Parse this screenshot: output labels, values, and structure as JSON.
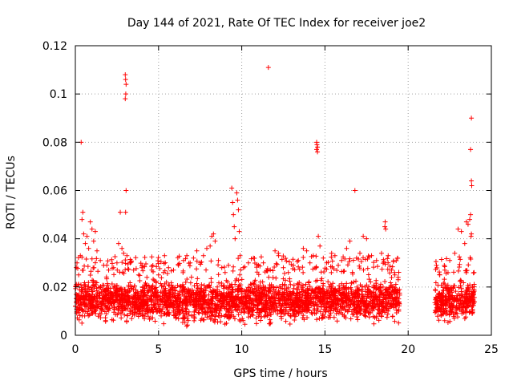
{
  "chart_data": {
    "type": "scatter",
    "title": "Day 144 of 2021, Rate Of TEC Index for receiver joe2",
    "xlabel": "GPS time / hours",
    "ylabel": "ROTI / TECUs",
    "xlim": [
      0,
      25
    ],
    "ylim": [
      0,
      0.12
    ],
    "xticks": [
      0,
      5,
      10,
      15,
      20,
      25
    ],
    "xtick_labels": [
      "0",
      "5",
      "10",
      "15",
      "20",
      "25"
    ],
    "yticks": [
      0,
      0.02,
      0.04,
      0.06,
      0.08,
      0.1,
      0.12
    ],
    "ytick_labels": [
      "0",
      "0.02",
      "0.04",
      "0.06",
      "0.08",
      "0.1",
      "0.12"
    ],
    "grid": true,
    "marker": "plus",
    "series": [
      {
        "name": "ROTI",
        "color": "#ff0000",
        "points": [
          [
            0.1,
            0.03
          ],
          [
            0.2,
            0.025
          ],
          [
            0.3,
            0.033
          ],
          [
            0.35,
            0.08
          ],
          [
            0.4,
            0.048
          ],
          [
            0.45,
            0.051
          ],
          [
            0.5,
            0.042
          ],
          [
            0.6,
            0.038
          ],
          [
            0.7,
            0.041
          ],
          [
            0.8,
            0.036
          ],
          [
            0.9,
            0.047
          ],
          [
            1.0,
            0.044
          ],
          [
            1.1,
            0.039
          ],
          [
            1.2,
            0.043
          ],
          [
            1.3,
            0.035
          ],
          [
            1.5,
            0.031
          ],
          [
            1.7,
            0.029
          ],
          [
            2.0,
            0.027
          ],
          [
            2.3,
            0.028
          ],
          [
            2.5,
            0.03
          ],
          [
            2.6,
            0.038
          ],
          [
            2.7,
            0.051
          ],
          [
            2.8,
            0.036
          ],
          [
            2.9,
            0.034
          ],
          [
            3.0,
            0.108
          ],
          [
            3.02,
            0.106
          ],
          [
            3.05,
            0.104
          ],
          [
            3.03,
            0.1
          ],
          [
            3.0,
            0.098
          ],
          [
            3.05,
            0.06
          ],
          [
            3.02,
            0.051
          ],
          [
            3.1,
            0.033
          ],
          [
            3.3,
            0.03
          ],
          [
            3.5,
            0.027
          ],
          [
            3.8,
            0.025
          ],
          [
            4.0,
            0.028
          ],
          [
            4.3,
            0.024
          ],
          [
            4.6,
            0.027
          ],
          [
            5.0,
            0.025
          ],
          [
            5.3,
            0.026
          ],
          [
            5.6,
            0.028
          ],
          [
            5.9,
            0.027
          ],
          [
            6.2,
            0.029
          ],
          [
            6.5,
            0.031
          ],
          [
            6.7,
            0.033
          ],
          [
            6.9,
            0.03
          ],
          [
            7.1,
            0.032
          ],
          [
            7.3,
            0.035
          ],
          [
            7.5,
            0.03
          ],
          [
            7.7,
            0.033
          ],
          [
            7.9,
            0.036
          ],
          [
            8.1,
            0.037
          ],
          [
            8.2,
            0.041
          ],
          [
            8.3,
            0.042
          ],
          [
            8.4,
            0.039
          ],
          [
            8.6,
            0.031
          ],
          [
            8.8,
            0.028
          ],
          [
            9.0,
            0.026
          ],
          [
            9.2,
            0.029
          ],
          [
            9.4,
            0.061
          ],
          [
            9.45,
            0.055
          ],
          [
            9.5,
            0.05
          ],
          [
            9.55,
            0.045
          ],
          [
            9.6,
            0.04
          ],
          [
            9.7,
            0.059
          ],
          [
            9.75,
            0.056
          ],
          [
            9.8,
            0.052
          ],
          [
            9.85,
            0.043
          ],
          [
            9.9,
            0.033
          ],
          [
            10.1,
            0.028
          ],
          [
            10.4,
            0.03
          ],
          [
            10.7,
            0.032
          ],
          [
            11.0,
            0.029
          ],
          [
            11.3,
            0.03
          ],
          [
            11.6,
            0.111
          ],
          [
            12.0,
            0.035
          ],
          [
            12.2,
            0.034
          ],
          [
            12.5,
            0.028
          ],
          [
            12.8,
            0.026
          ],
          [
            13.1,
            0.029
          ],
          [
            13.4,
            0.031
          ],
          [
            13.7,
            0.036
          ],
          [
            13.9,
            0.035
          ],
          [
            14.1,
            0.03
          ],
          [
            14.3,
            0.033
          ],
          [
            14.5,
            0.08
          ],
          [
            14.52,
            0.079
          ],
          [
            14.55,
            0.078
          ],
          [
            14.5,
            0.077
          ],
          [
            14.55,
            0.076
          ],
          [
            14.6,
            0.041
          ],
          [
            14.7,
            0.037
          ],
          [
            14.9,
            0.032
          ],
          [
            15.1,
            0.03
          ],
          [
            15.4,
            0.034
          ],
          [
            15.6,
            0.033
          ],
          [
            15.8,
            0.029
          ],
          [
            16.0,
            0.031
          ],
          [
            16.3,
            0.036
          ],
          [
            16.5,
            0.039
          ],
          [
            16.8,
            0.06
          ],
          [
            16.9,
            0.032
          ],
          [
            17.1,
            0.034
          ],
          [
            17.3,
            0.041
          ],
          [
            17.5,
            0.04
          ],
          [
            17.8,
            0.033
          ],
          [
            18.1,
            0.031
          ],
          [
            18.4,
            0.034
          ],
          [
            18.6,
            0.045
          ],
          [
            18.62,
            0.047
          ],
          [
            18.65,
            0.044
          ],
          [
            18.8,
            0.033
          ],
          [
            19.0,
            0.027
          ],
          [
            19.2,
            0.025
          ],
          [
            19.4,
            0.024
          ],
          [
            21.7,
            0.029
          ],
          [
            21.9,
            0.025
          ],
          [
            22.2,
            0.027
          ],
          [
            22.5,
            0.031
          ],
          [
            22.8,
            0.034
          ],
          [
            23.0,
            0.044
          ],
          [
            23.2,
            0.043
          ],
          [
            23.4,
            0.038
          ],
          [
            23.5,
            0.047
          ],
          [
            23.6,
            0.046
          ],
          [
            23.7,
            0.048
          ],
          [
            23.75,
            0.05
          ],
          [
            23.8,
            0.042
          ],
          [
            23.78,
            0.041
          ],
          [
            23.8,
            0.09
          ],
          [
            23.75,
            0.077
          ],
          [
            23.8,
            0.064
          ],
          [
            23.82,
            0.062
          ]
        ],
        "dense_band": {
          "segments": [
            [
              0.0,
              19.5
            ],
            [
              21.6,
              24.0
            ]
          ],
          "typical_range": [
            0.003,
            0.025
          ],
          "description_hours_only": true
        }
      }
    ]
  }
}
